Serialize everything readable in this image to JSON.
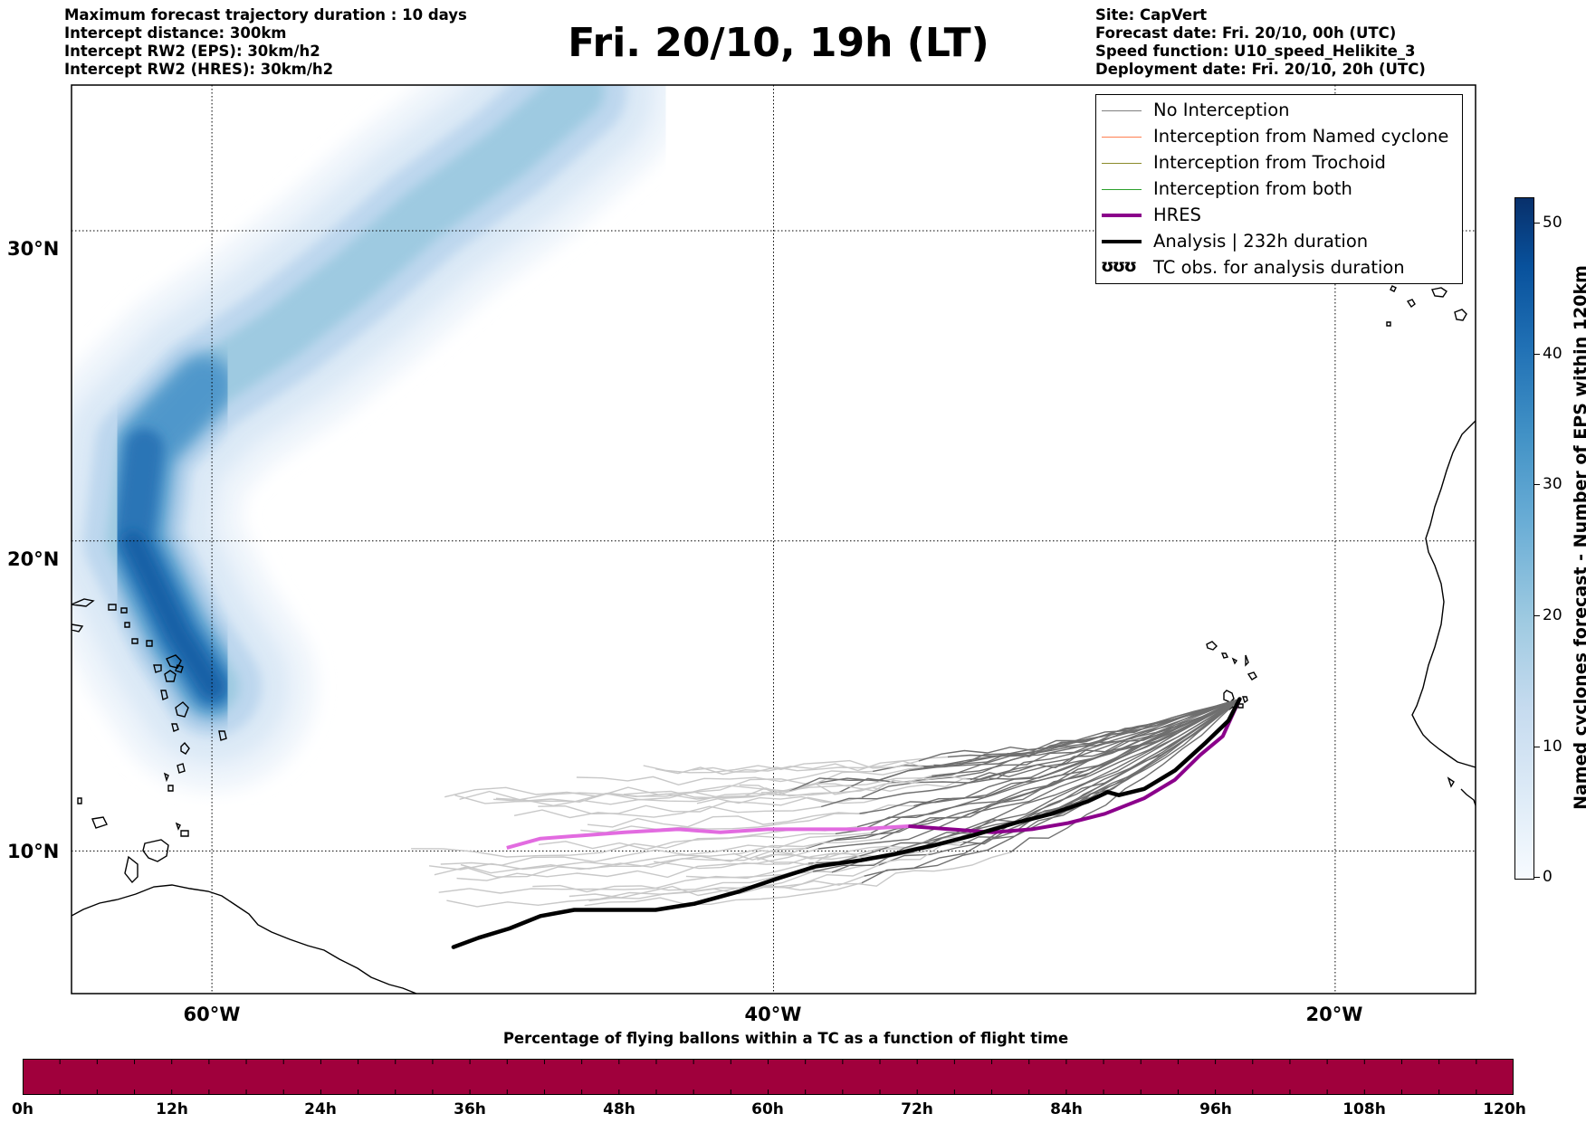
{
  "header_left": [
    "Maximum forecast trajectory duration : 10 days",
    "Intercept distance: 300km",
    "Intercept RW2 (EPS):  30km/h2",
    "Intercept RW2 (HRES): 30km/h2"
  ],
  "title": "Fri. 20/10, 19h (LT)",
  "header_right": [
    "Site: CapVert",
    "Forecast date: Fri. 20/10, 00h (UTC)",
    "Speed function: U10_speed_Helikite_3",
    "Deployment date: Fri. 20/10, 20h (UTC)"
  ],
  "map": {
    "lon_range": [
      -65,
      -15
    ],
    "lat_range": [
      5.4,
      34.7
    ],
    "lon_ticks": [
      {
        "value": -60,
        "label": "60°W"
      },
      {
        "value": -40,
        "label": "40°W"
      },
      {
        "value": -20,
        "label": "20°W"
      }
    ],
    "lat_ticks": [
      {
        "value": 30,
        "label": "30°N"
      },
      {
        "value": 20,
        "label": "20°N"
      },
      {
        "value": 10,
        "label": "10°N"
      }
    ],
    "grid": "dotted"
  },
  "legend": {
    "items": [
      {
        "label": "No Interception",
        "color": "#808080",
        "style": "thin"
      },
      {
        "label": "Interception from Named cyclone",
        "color": "#ff7f50",
        "style": "thin"
      },
      {
        "label": "Interception from Trochoid",
        "color": "#8b8b2a",
        "style": "thin"
      },
      {
        "label": "Interception from both",
        "color": "#2ca02c",
        "style": "thin"
      },
      {
        "label": "HRES",
        "color": "#8b008b",
        "style": "thick"
      },
      {
        "label": "Analysis | 232h duration",
        "color": "#000000",
        "style": "thick"
      },
      {
        "label": "TC obs. for analysis duration",
        "color": "#000000",
        "style": "marker",
        "marker": "ʊʊʊ"
      }
    ]
  },
  "colorbar": {
    "title": "Named cyclones forecast - Number of EPS within 120km",
    "ticks": [
      0,
      10,
      20,
      30,
      40,
      50
    ],
    "max": 52
  },
  "bottom_bar": {
    "title": "Percentage of flying ballons within a TC as a function of flight time",
    "color": "#a0003c",
    "ticks": [
      "0h",
      "12h",
      "24h",
      "36h",
      "48h",
      "60h",
      "72h",
      "84h",
      "96h",
      "108h",
      "120h"
    ]
  },
  "tracks": {
    "deployment_site": [
      -23.4,
      14.9
    ],
    "analysis": [
      [
        -51.4,
        6.9
      ],
      [
        -50.5,
        7.2
      ],
      [
        -49.4,
        7.5
      ],
      [
        -48.3,
        7.9
      ],
      [
        -47.1,
        8.1
      ],
      [
        -45.7,
        8.1
      ],
      [
        -44.2,
        8.1
      ],
      [
        -42.8,
        8.3
      ],
      [
        -41.2,
        8.7
      ],
      [
        -39.9,
        9.1
      ],
      [
        -38.5,
        9.5
      ],
      [
        -36.9,
        9.7
      ],
      [
        -35.7,
        9.9
      ],
      [
        -34.2,
        10.2
      ],
      [
        -32.9,
        10.5
      ],
      [
        -31.4,
        10.9
      ],
      [
        -30.1,
        11.2
      ],
      [
        -28.8,
        11.6
      ],
      [
        -28.1,
        11.9
      ],
      [
        -27.7,
        11.8
      ],
      [
        -26.8,
        12.0
      ],
      [
        -25.7,
        12.6
      ],
      [
        -24.6,
        13.5
      ],
      [
        -23.8,
        14.2
      ],
      [
        -23.4,
        14.9
      ]
    ],
    "hres": [
      [
        -49.5,
        10.1
      ],
      [
        -48.3,
        10.4
      ],
      [
        -46.8,
        10.5
      ],
      [
        -45.3,
        10.6
      ],
      [
        -43.4,
        10.7
      ],
      [
        -41.9,
        10.6
      ],
      [
        -40.2,
        10.7
      ],
      [
        -38.6,
        10.7
      ],
      [
        -37.0,
        10.7
      ],
      [
        -35.2,
        10.8
      ],
      [
        -33.7,
        10.7
      ],
      [
        -32.2,
        10.6
      ],
      [
        -30.8,
        10.7
      ],
      [
        -29.5,
        10.9
      ],
      [
        -28.2,
        11.2
      ],
      [
        -26.8,
        11.7
      ],
      [
        -25.7,
        12.3
      ],
      [
        -24.8,
        13.1
      ],
      [
        -24.0,
        13.7
      ],
      [
        -23.4,
        14.9
      ]
    ],
    "ensemble_count": 36,
    "ensemble_west_range": [
      -53,
      -40
    ],
    "ensemble_lat_range": [
      8.3,
      12.9
    ]
  },
  "eps_density_axis": [
    [
      -60.0,
      15.3
    ],
    [
      -61.2,
      17.0
    ],
    [
      -62.8,
      20.0
    ],
    [
      -62.4,
      23.0
    ],
    [
      -60.3,
      25.0
    ],
    [
      -57.5,
      26.7
    ],
    [
      -55.0,
      28.5
    ],
    [
      -52.5,
      30.5
    ],
    [
      -49.5,
      32.5
    ],
    [
      -47.0,
      34.5
    ]
  ]
}
